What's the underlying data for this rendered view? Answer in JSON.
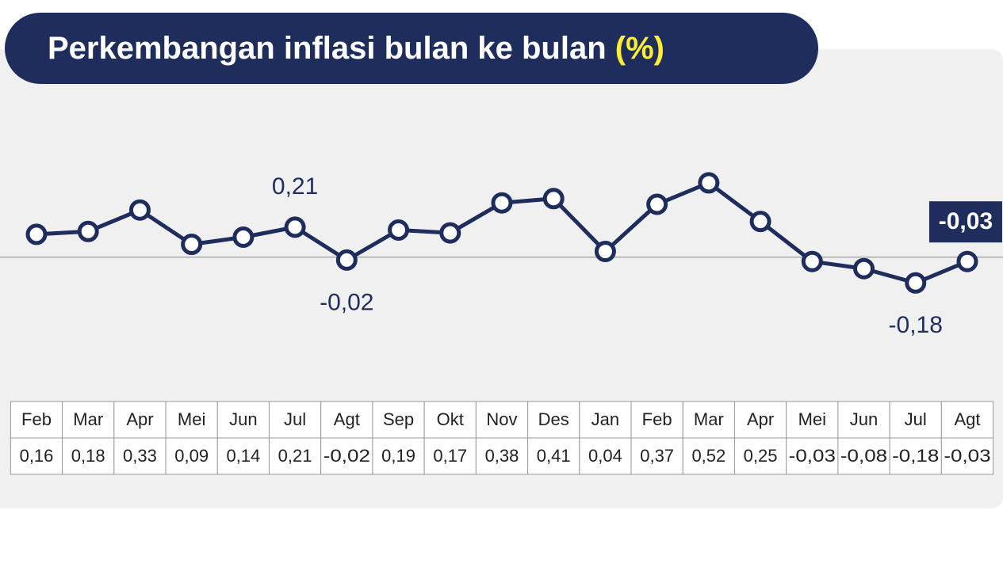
{
  "chart_data": {
    "type": "line",
    "title": "Perkembangan inflasi bulan ke bulan",
    "unit": "(%)",
    "categories": [
      "Feb",
      "Mar",
      "Apr",
      "Mei",
      "Jun",
      "Jul",
      "Agt",
      "Sep",
      "Okt",
      "Nov",
      "Des",
      "Jan",
      "Feb",
      "Mar",
      "Apr",
      "Mei",
      "Jun",
      "Jul",
      "Agt"
    ],
    "values": [
      0.16,
      0.18,
      0.33,
      0.09,
      0.14,
      0.21,
      -0.02,
      0.19,
      0.17,
      0.38,
      0.41,
      0.04,
      0.37,
      0.52,
      0.25,
      -0.03,
      -0.08,
      -0.18,
      -0.03
    ],
    "value_labels": [
      "0,16",
      "0,18",
      "0,33",
      "0,09",
      "0,14",
      "0,21",
      "-0,02",
      "0,19",
      "0,17",
      "0,38",
      "0,41",
      "0,04",
      "0,37",
      "0,52",
      "0,25",
      "-0,03",
      "-0,08",
      "-0,18",
      "-0,03"
    ],
    "point_labels": [
      null,
      null,
      null,
      null,
      null,
      "0,21",
      "-0,02",
      null,
      null,
      null,
      null,
      null,
      null,
      null,
      null,
      null,
      null,
      "-0,18",
      "-0,03"
    ],
    "color": "#1f2d5c",
    "ylim": [
      -0.86,
      1.19
    ],
    "zero_line": true
  }
}
